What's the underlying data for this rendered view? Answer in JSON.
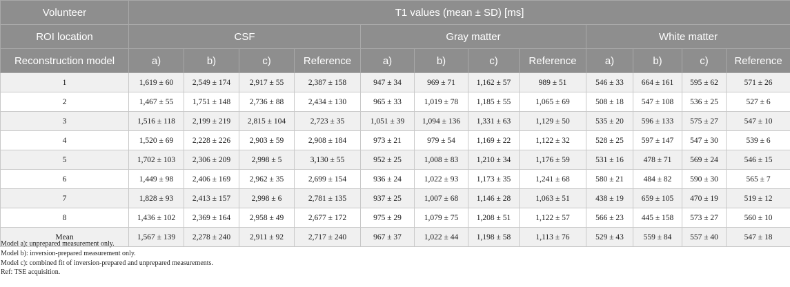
{
  "header": {
    "volunteer": "Volunteer",
    "t1_title": "T1 values (mean ± SD) [ms]",
    "roi_location": "ROI location",
    "csf": "CSF",
    "gray_matter": "Gray matter",
    "white_matter": "White matter",
    "reconstruction_model": "Reconstruction model",
    "cols": [
      "a)",
      "b)",
      "c)",
      "Reference",
      "a)",
      "b)",
      "c)",
      "Reference",
      "a)",
      "b)",
      "c)",
      "Reference"
    ]
  },
  "rows": [
    [
      "1",
      "1,619 ± 60",
      "2,549 ± 174",
      "2,917 ± 55",
      "2,387 ± 158",
      "947 ± 34",
      "969 ± 71",
      "1,162 ± 57",
      "989 ± 51",
      "546 ± 33",
      "664 ± 161",
      "595 ± 62",
      "571 ± 26"
    ],
    [
      "2",
      "1,467 ± 55",
      "1,751 ± 148",
      "2,736 ± 88",
      "2,434 ± 130",
      "965 ± 33",
      "1,019 ± 78",
      "1,185 ± 55",
      "1,065 ± 69",
      "508 ± 18",
      "547 ± 108",
      "536 ± 25",
      "527 ± 6"
    ],
    [
      "3",
      "1,516 ± 118",
      "2,199 ± 219",
      "2,815 ± 104",
      "2,723 ± 35",
      "1,051 ± 39",
      "1,094 ± 136",
      "1,331 ± 63",
      "1,129 ± 50",
      "535 ± 20",
      "596 ± 133",
      "575 ± 27",
      "547 ± 10"
    ],
    [
      "4",
      "1,520 ± 69",
      "2,228 ± 226",
      "2,903 ± 59",
      "2,908 ± 184",
      "973 ± 21",
      "979 ± 54",
      "1,169 ± 22",
      "1,122 ± 32",
      "528 ± 25",
      "597 ± 147",
      "547 ± 30",
      "539 ± 6"
    ],
    [
      "5",
      "1,702 ± 103",
      "2,306 ± 209",
      "2,998 ± 5",
      "3,130 ± 55",
      "952 ± 25",
      "1,008 ± 83",
      "1,210 ± 34",
      "1,176 ± 59",
      "531 ± 16",
      "478 ± 71",
      "569 ± 24",
      "546 ± 15"
    ],
    [
      "6",
      "1,449 ± 98",
      "2,406 ± 169",
      "2,962 ± 35",
      "2,699 ± 154",
      "936 ± 24",
      "1,022 ± 93",
      "1,173 ± 35",
      "1,241 ± 68",
      "580 ± 21",
      "484 ± 82",
      "590 ± 30",
      "565 ± 7"
    ],
    [
      "7",
      "1,828 ± 93",
      "2,413 ± 157",
      "2,998 ± 6",
      "2,781 ± 135",
      "937 ± 25",
      "1,007 ± 68",
      "1,146 ± 28",
      "1,063 ± 51",
      "438 ± 19",
      "659 ± 105",
      "470 ± 19",
      "519 ± 12"
    ],
    [
      "8",
      "1,436 ± 102",
      "2,369 ± 164",
      "2,958 ± 49",
      "2,677 ± 172",
      "975 ± 29",
      "1,079 ± 75",
      "1,208 ± 51",
      "1,122 ± 57",
      "566 ± 23",
      "445 ± 158",
      "573 ± 27",
      "560 ± 10"
    ],
    [
      "Mean",
      "1,567 ± 139",
      "2,278 ± 240",
      "2,911 ± 92",
      "2,717 ± 240",
      "967 ± 37",
      "1,022 ± 44",
      "1,198 ± 58",
      "1,113 ± 76",
      "529 ± 43",
      "559 ± 84",
      "557 ± 40",
      "547 ± 18"
    ]
  ],
  "notes": [
    "Model a): unprepared measurement only.",
    "Model b): inversion-prepared measurement only.",
    "Model c): combined fit of inversion-prepared and unprepared measurements.",
    "Ref: TSE acquisition."
  ]
}
